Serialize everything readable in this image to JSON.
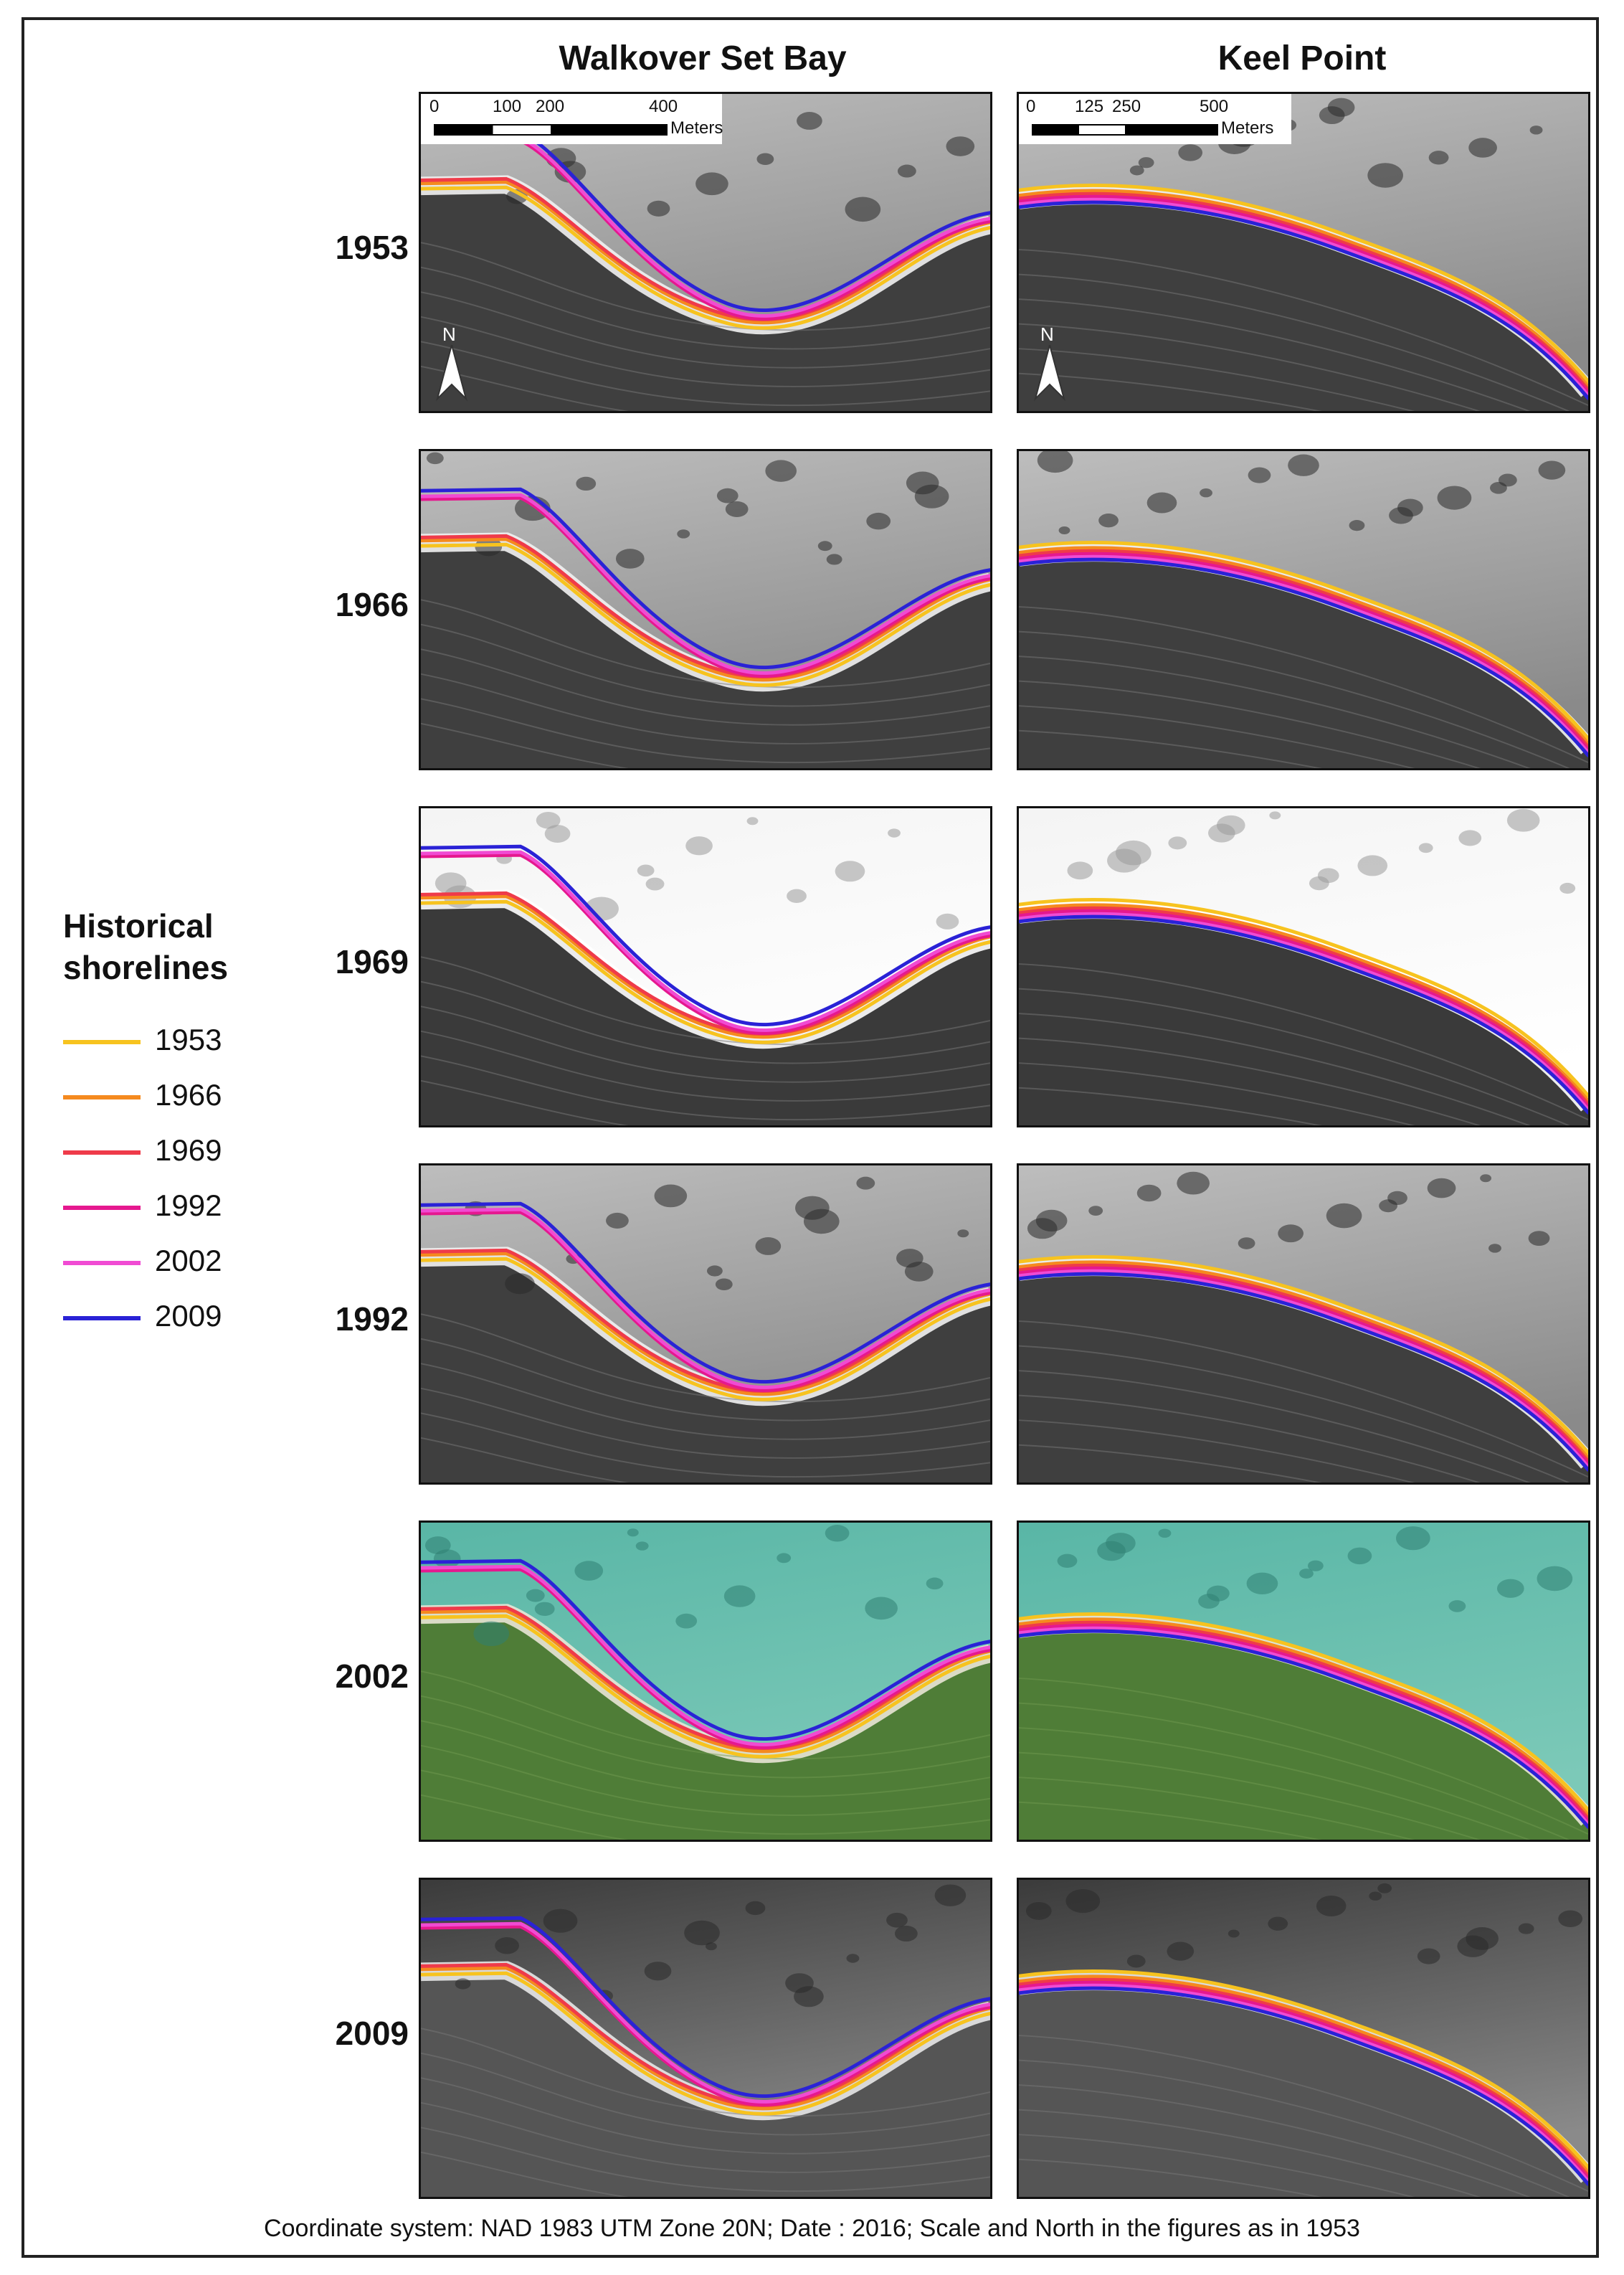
{
  "columns": {
    "left_title": "Walkover Set Bay",
    "right_title": "Keel Point"
  },
  "years": [
    "1953",
    "1966",
    "1969",
    "1992",
    "2002",
    "2009"
  ],
  "legend": {
    "title_line1": "Historical",
    "title_line2": "shorelines",
    "items": [
      {
        "year": "1953",
        "color": "#f7c31f"
      },
      {
        "year": "1966",
        "color": "#f58a1f"
      },
      {
        "year": "1969",
        "color": "#ef3b4a"
      },
      {
        "year": "1992",
        "color": "#e5188f"
      },
      {
        "year": "2002",
        "color": "#f04bd3"
      },
      {
        "year": "2009",
        "color": "#2a22d6"
      }
    ]
  },
  "scale_bars": {
    "left": {
      "ticks": [
        "0",
        "100",
        "200",
        "400"
      ],
      "unit": "Meters"
    },
    "right": {
      "ticks": [
        "0",
        "125",
        "250",
        "500"
      ],
      "unit": "Meters"
    }
  },
  "north_arrow": {
    "label": "N"
  },
  "caption": "Coordinate system: NAD 1983 UTM Zone 20N; Date : 2016; Scale and North in the figures as in 1953",
  "map_style": {
    "imagery_color_year": "2002",
    "imagery_water_color": "#59b6a6",
    "imagery_land_color": "#4f7d37"
  }
}
